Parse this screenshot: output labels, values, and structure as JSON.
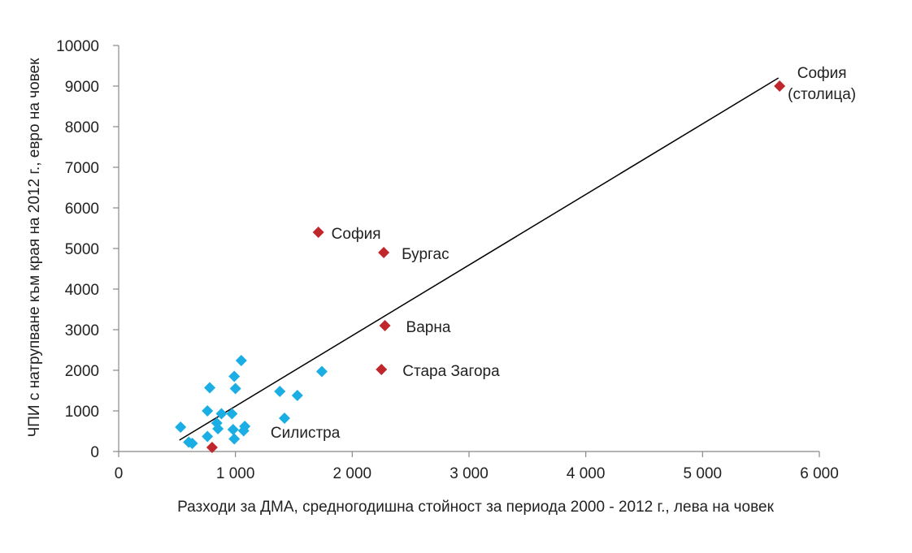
{
  "chart_data": {
    "type": "scatter",
    "xlabel": "Разходи за ДМА, средногодишна стойност за периода 2000 - 2012 г., лева на човек",
    "ylabel": "ЧПИ с натрупване към края на 2012 г., евро на човек",
    "xlim": [
      0,
      6000
    ],
    "ylim": [
      0,
      10000
    ],
    "x_ticks": [
      0,
      1000,
      2000,
      3000,
      4000,
      5000,
      6000
    ],
    "x_tick_labels": [
      "0",
      "1 000",
      "2 000",
      "3 000",
      "4 000",
      "5 000",
      "6 000"
    ],
    "y_ticks": [
      0,
      1000,
      2000,
      3000,
      4000,
      5000,
      6000,
      7000,
      8000,
      9000,
      10000
    ],
    "y_tick_labels": [
      "0",
      "1000",
      "2000",
      "3000",
      "4000",
      "5000",
      "6000",
      "7000",
      "8000",
      "9000",
      "10000"
    ],
    "grid": false,
    "legend": "none",
    "colors": {
      "regular": "#1aaee5",
      "highlighted": "#c0272d",
      "trendline": "#000000"
    },
    "trendline": [
      [
        520,
        280
      ],
      [
        5650,
        9200
      ]
    ],
    "series": [
      {
        "points": [
          [
            530,
            600
          ],
          [
            600,
            230
          ],
          [
            630,
            200
          ],
          [
            760,
            1000
          ],
          [
            780,
            1570
          ],
          [
            760,
            370
          ],
          [
            840,
            700
          ],
          [
            850,
            560
          ],
          [
            880,
            930
          ],
          [
            970,
            930
          ],
          [
            980,
            540
          ],
          [
            990,
            1850
          ],
          [
            1000,
            1550
          ],
          [
            1050,
            2240
          ],
          [
            990,
            310
          ],
          [
            1070,
            510
          ],
          [
            1080,
            620
          ],
          [
            1380,
            1480
          ],
          [
            1420,
            820
          ],
          [
            1530,
            1380
          ],
          [
            1740,
            1970
          ]
        ]
      },
      {
        "points": [
          [
            800,
            100
          ],
          [
            1710,
            5400
          ],
          [
            2270,
            4900
          ],
          [
            2280,
            3100
          ],
          [
            2250,
            2020
          ],
          [
            5660,
            9000
          ]
        ]
      }
    ],
    "annotations": [
      {
        "text": "Силистра",
        "x": 800,
        "y": 100
      },
      {
        "text": "София",
        "x": 1710,
        "y": 5400
      },
      {
        "text": "Бургас",
        "x": 2270,
        "y": 4900
      },
      {
        "text": "Варна",
        "x": 2280,
        "y": 3100
      },
      {
        "text": "Стара Загора",
        "x": 2250,
        "y": 2020
      },
      {
        "text": "София",
        "x": 5660,
        "y": 9000
      },
      {
        "text": "(столица)",
        "x": 5660,
        "y": 9000
      }
    ]
  }
}
